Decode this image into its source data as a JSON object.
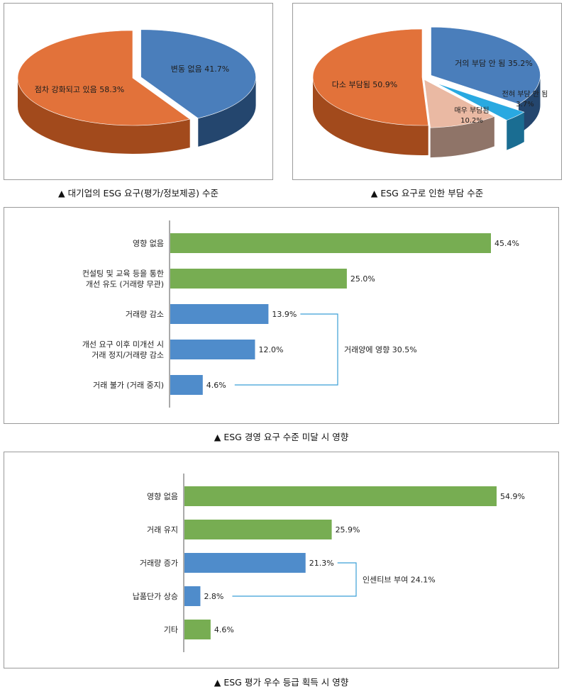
{
  "chart_data": [
    {
      "type": "pie",
      "caption": "▲ 대기업의 ESG 요구(평가/정보제공) 수준",
      "slices": [
        {
          "label": "변동 없음",
          "value": 41.7,
          "label_text": "변동 없음 41.7%",
          "color": "#4a7ebb",
          "side": "#24466e"
        },
        {
          "label": "점차 강화되고 있음",
          "value": 58.3,
          "label_text": "점차 강화되고 있음 58.3%",
          "color": "#e2723a",
          "side": "#a24a1c"
        }
      ]
    },
    {
      "type": "pie",
      "caption": "▲ ESG 요구로 인한 부담 수준",
      "slices": [
        {
          "label": "거의 부담 안 됨",
          "value": 35.2,
          "label_text": "거의 부담 안 됨 35.2%",
          "color": "#4a7ebb",
          "side": "#24466e"
        },
        {
          "label": "전혀 부담 안 됨",
          "value": 3.7,
          "label_text": "전혀 부담 안 됨",
          "label_text2": "3.7%",
          "color": "#29a9e1",
          "side": "#1a6d92"
        },
        {
          "label": "매우 부담됨",
          "value": 10.2,
          "label_text": "매우 부담됨",
          "label_text2": "10.2%",
          "color": "#eab9a3",
          "side": "#8f7468"
        },
        {
          "label": "다소 부담됨",
          "value": 50.9,
          "label_text": "다소 부담됨 50.9%",
          "color": "#e2723a",
          "side": "#a24a1c"
        }
      ]
    },
    {
      "type": "bar",
      "orientation": "horizontal",
      "caption": "▲ ESG 경영 요구 수준 미달 시 영향",
      "categories": [
        [
          "영향 없음"
        ],
        [
          "컨설팅 및 교육 등을 통한",
          "개선 유도 (거래량 무관)"
        ],
        [
          "거래량 감소"
        ],
        [
          "개선 요구 이후 미개선 시",
          "거래 정지/거래량 감소"
        ],
        [
          "거래 불가 (거래 중지)"
        ]
      ],
      "values": [
        45.4,
        25.0,
        13.9,
        12.0,
        4.6
      ],
      "value_labels": [
        "45.4%",
        "25.0%",
        "13.9%",
        "12.0%",
        "4.6%"
      ],
      "colors": [
        "#77ad52",
        "#77ad52",
        "#4f8ccb",
        "#4f8ccb",
        "#4f8ccb"
      ],
      "bracket": {
        "from": 2,
        "to": 4,
        "label": "거래양에 영향 30.5%"
      },
      "xlim": [
        0,
        45.4
      ]
    },
    {
      "type": "bar",
      "orientation": "horizontal",
      "caption": "▲ ESG 평가 우수 등급 획득 시 영향",
      "categories": [
        [
          "영향 없음"
        ],
        [
          "거래 유지"
        ],
        [
          "거래량 증가"
        ],
        [
          "납품단가 상승"
        ],
        [
          "기타"
        ]
      ],
      "values": [
        54.9,
        25.9,
        21.3,
        2.8,
        4.6
      ],
      "value_labels": [
        "54.9%",
        "25.9%",
        "21.3%",
        "2.8%",
        "4.6%"
      ],
      "colors": [
        "#77ad52",
        "#77ad52",
        "#4f8ccb",
        "#4f8ccb",
        "#77ad52"
      ],
      "bracket": {
        "from": 2,
        "to": 3,
        "label": "인센티브 부여 24.1%"
      },
      "xlim": [
        0,
        54.9
      ]
    }
  ]
}
